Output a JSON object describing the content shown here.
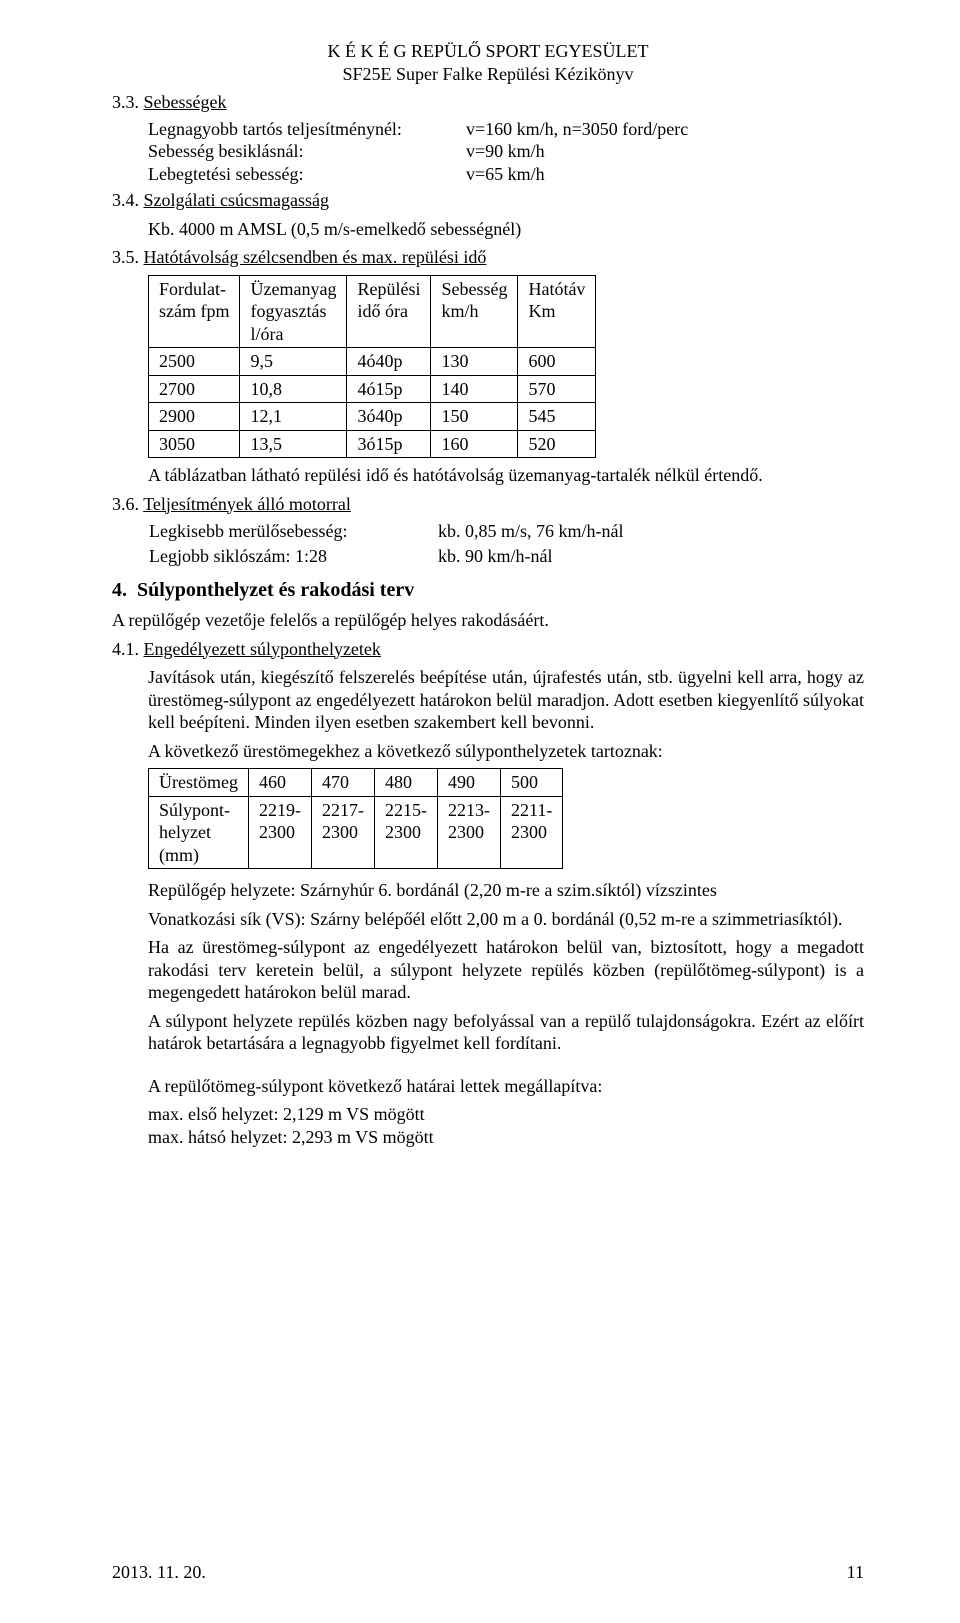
{
  "header": {
    "line1": "K É K  É G  REPÜLŐ SPORT EGYESÜLET",
    "line2": "SF25E Super Falke Repülési Kézikönyv"
  },
  "s33": {
    "num": "3.3.",
    "title": "Sebességek",
    "rows": [
      {
        "label": "Legnagyobb tartós teljesítménynél:",
        "value": "v=160 km/h, n=3050 ford/perc"
      },
      {
        "label": "Sebesség besiklásnál:",
        "value": "v=90 km/h"
      },
      {
        "label": "Lebegtetési sebesség:",
        "value": "v=65 km/h"
      }
    ]
  },
  "s34": {
    "num": "3.4.",
    "title": "Szolgálati csúcsmagasság",
    "text": "Kb. 4000 m AMSL (0,5 m/s-emelkedő sebességnél)"
  },
  "s35": {
    "num": "3.5.",
    "title": "Hatótávolság szélcsendben és max. repülési idő",
    "headers": [
      "Fordulat-\nszám fpm",
      "Üzemanyag\nfogyasztás\nl/óra",
      "Repülési\nidő óra",
      "Sebesség\nkm/h",
      "Hatótáv\nKm"
    ],
    "rows": [
      [
        "2500",
        "9,5",
        "4ó40p",
        "130",
        "600"
      ],
      [
        "2700",
        "10,8",
        "4ó15p",
        "140",
        "570"
      ],
      [
        "2900",
        "12,1",
        "3ó40p",
        "150",
        "545"
      ],
      [
        "3050",
        "13,5",
        "3ó15p",
        "160",
        "520"
      ]
    ],
    "note": "A táblázatban látható repülési idő és hatótávolság üzemanyag-tartalék nélkül értendő."
  },
  "s36": {
    "num": "3.6.",
    "title": "Teljesítmények álló motorral",
    "rows": [
      {
        "label": "Legkisebb merülősebesség:",
        "value": "kb. 0,85 m/s, 76 km/h-nál"
      },
      {
        "label": "Legjobb siklószám: 1:28",
        "value": "kb. 90 km/h-nál"
      }
    ]
  },
  "s4": {
    "num": "4.",
    "title": "Súlyponthelyzet és rakodási terv",
    "intro": "A repülőgép vezetője felelős a repülőgép helyes rakodásáért."
  },
  "s41": {
    "num": "4.1.",
    "title": "Engedélyezett súlyponthelyzetek",
    "p1": "Javítások után, kiegészítő felszerelés beépítése után, újrafestés után, stb. ügyelni kell arra, hogy az ürestömeg-súlypont az engedélyezett határokon belül maradjon. Adott esetben kiegyenlítő súlyokat kell beépíteni. Minden ilyen esetben szakembert kell bevonni.",
    "p2": "A következő ürestömegekhez a következő súlyponthelyzetek tartoznak:",
    "mass_table": {
      "row1_label": "Ürestömeg",
      "row1": [
        "460",
        "470",
        "480",
        "490",
        "500"
      ],
      "row2_label": "Súlypont-\nhelyzet\n(mm)",
      "row2": [
        "2219-\n2300",
        "2217-\n2300",
        "2215-\n2300",
        "2213-\n2300",
        "2211-\n2300"
      ]
    },
    "p3": "Repülőgép helyzete: Szárnyhúr 6. bordánál (2,20 m-re a szim.síktól) vízszintes",
    "p4": "Vonatkozási sík (VS): Szárny belépőél előtt 2,00 m a 0. bordánál (0,52 m-re a szimmetriasíktól).",
    "p5": "Ha az ürestömeg-súlypont az engedélyezett határokon belül van, biztosított, hogy a megadott rakodási terv keretein belül, a súlypont helyzete repülés közben (repülőtömeg-súlypont) is a megengedett határokon belül marad.",
    "p6": "A súlypont helyzete repülés közben nagy befolyással van a repülő tulajdonságokra. Ezért az előírt határok betartására a legnagyobb figyelmet kell fordítani.",
    "p7": "A repülőtömeg-súlypont következő határai lettek megállapítva:",
    "p8": "max. első helyzet: 2,129 m VS mögött",
    "p9": "max. hátsó helyzet: 2,293 m VS mögött"
  },
  "footer": {
    "date": "2013. 11. 20.",
    "page": "11"
  }
}
